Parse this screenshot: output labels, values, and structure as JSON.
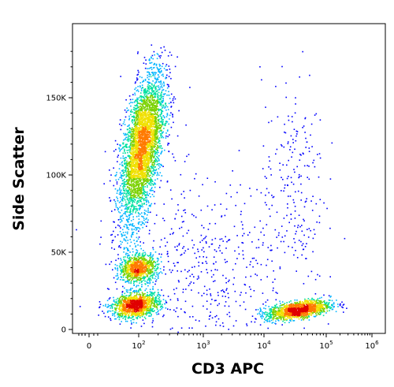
{
  "chart_data": {
    "type": "scatter",
    "title": "",
    "xlabel": "CD3 APC",
    "ylabel": "Side Scatter",
    "x_scale": "biexponential (log)",
    "x_ticks": [
      {
        "base": "0",
        "exp": ""
      },
      {
        "base": "10",
        "exp": "2"
      },
      {
        "base": "10",
        "exp": "3"
      },
      {
        "base": "10",
        "exp": "4"
      },
      {
        "base": "10",
        "exp": "5"
      },
      {
        "base": "10",
        "exp": "6"
      }
    ],
    "y_ticks": [
      "0",
      "50K",
      "100K",
      "150K"
    ],
    "y_tick_values": [
      0,
      50000,
      100000,
      150000
    ],
    "ylim": [
      0,
      190000
    ],
    "grid": false,
    "legend": "none",
    "color_scale": "density (blue-cyan-green-yellow-red)",
    "colors": [
      "#0000ff",
      "#00b4ff",
      "#00e0a0",
      "#7ad100",
      "#f0e000",
      "#ff7a00",
      "#e00000"
    ],
    "populations": [
      {
        "x_log10": 2.05,
        "y": 118000,
        "count": 3800
      },
      {
        "x_log10": 1.95,
        "y": 40000,
        "count": 900
      },
      {
        "x_log10": 1.85,
        "y": 16000,
        "count": 1300
      },
      {
        "x_log10": 4.55,
        "y": 13000,
        "count": 1400
      },
      {
        "x_log10": 4.45,
        "y": 95000,
        "count": 220
      },
      {
        "x_log10": 3.0,
        "y": 40000,
        "count": 500
      }
    ]
  }
}
